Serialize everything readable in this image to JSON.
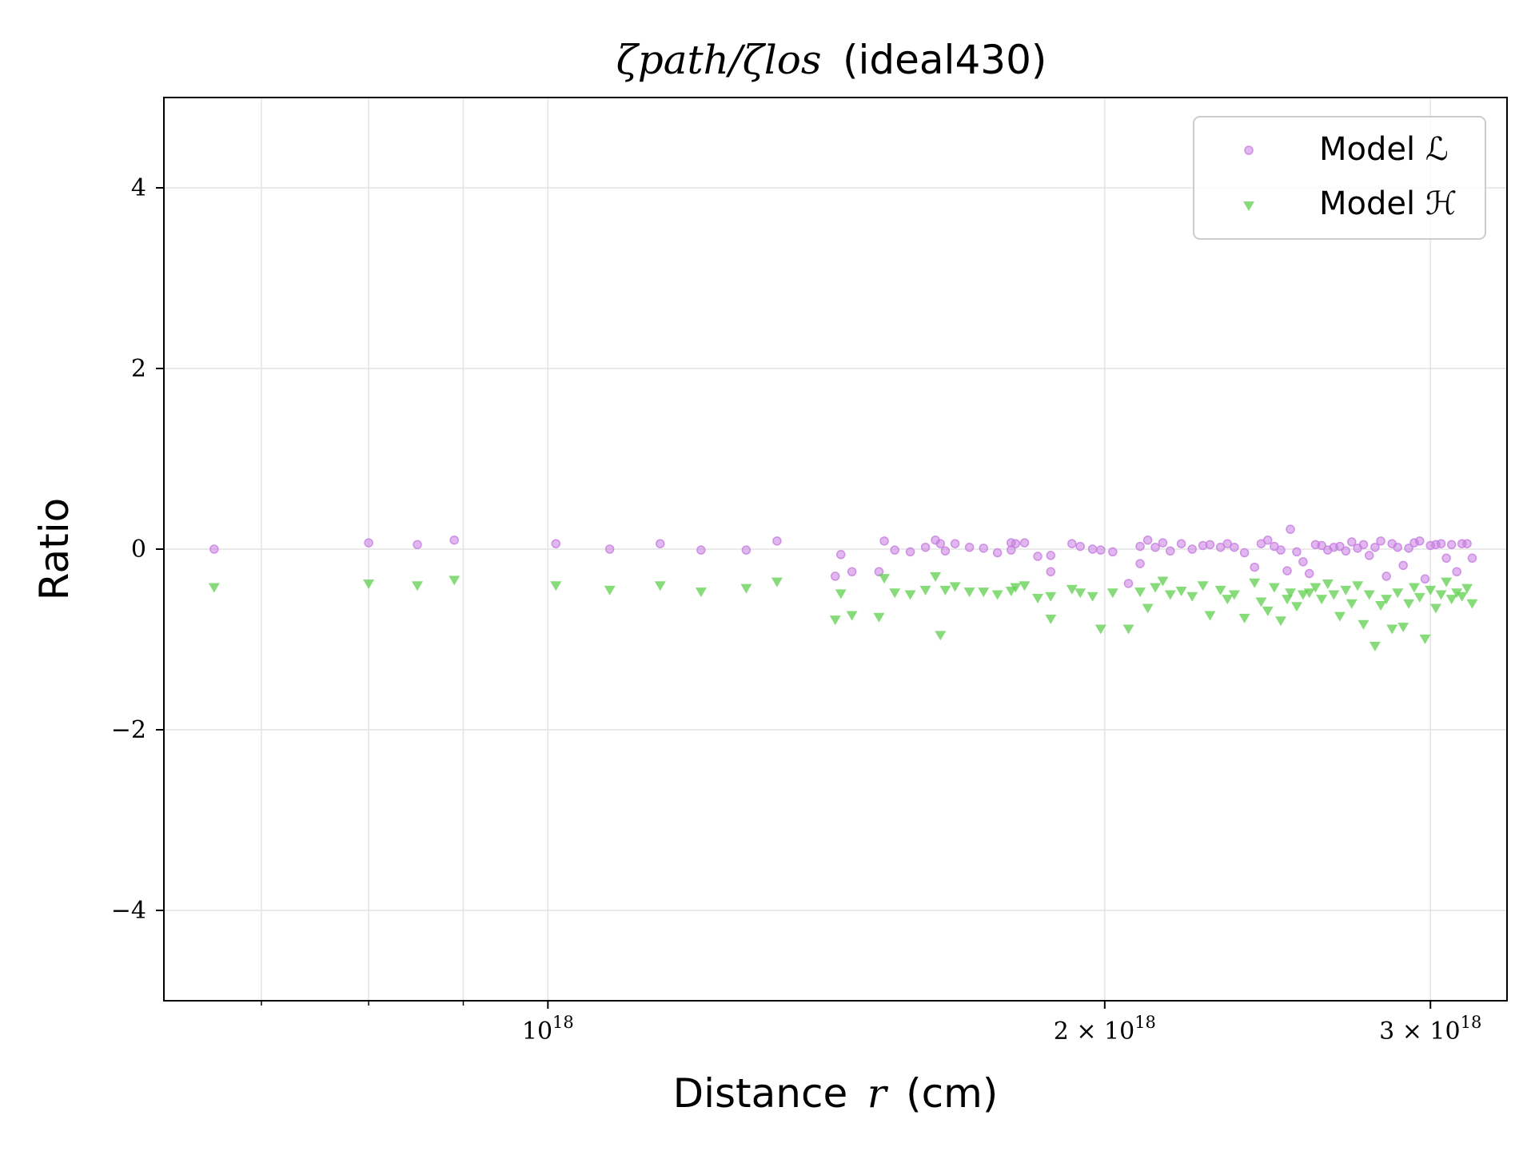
{
  "chart_data": {
    "type": "scatter",
    "title_math": "ζpath/ζlos",
    "title_text": "(ideal430)",
    "xlabel_text": "Distance",
    "xlabel_var": "r",
    "xlabel_unit": "(cm)",
    "ylabel": "Ratio",
    "x_scale": "log",
    "x_range": [
      6.2e+17,
      3.3e+18
    ],
    "ylim": [
      -5,
      5
    ],
    "grid": true,
    "legend_position": "top-right",
    "x_major_ticks": [
      {
        "value": 1e+18,
        "label_coef": "",
        "label_base": "10",
        "label_exp": "18"
      },
      {
        "value": 2e+18,
        "label_coef": "2 × ",
        "label_base": "10",
        "label_exp": "18"
      },
      {
        "value": 3e+18,
        "label_coef": "3 × ",
        "label_base": "10",
        "label_exp": "18"
      }
    ],
    "x_minor_ticks": [
      7e+17,
      8e+17,
      9e+17
    ],
    "y_ticks": [
      {
        "value": 4,
        "label": "4"
      },
      {
        "value": 2,
        "label": "2"
      },
      {
        "value": 0,
        "label": "0"
      },
      {
        "value": -2,
        "label": "−2"
      },
      {
        "value": -4,
        "label": "−4"
      }
    ],
    "series": [
      {
        "name": "Model ℒ",
        "color": "#c77ce0",
        "marker": "circle",
        "points": [
          [
            6.6e+17,
            0.0
          ],
          [
            8e+17,
            0.07
          ],
          [
            8.5e+17,
            0.05
          ],
          [
            8.9e+17,
            0.1
          ],
          [
            1.01e+18,
            0.06
          ],
          [
            1.08e+18,
            0.0
          ],
          [
            1.15e+18,
            0.06
          ],
          [
            1.21e+18,
            -0.01
          ],
          [
            1.28e+18,
            -0.01
          ],
          [
            1.33e+18,
            0.09
          ],
          [
            1.43e+18,
            -0.3
          ],
          [
            1.44e+18,
            -0.06
          ],
          [
            1.46e+18,
            -0.25
          ],
          [
            1.51e+18,
            -0.25
          ],
          [
            1.52e+18,
            0.09
          ],
          [
            1.54e+18,
            -0.01
          ],
          [
            1.57e+18,
            -0.03
          ],
          [
            1.6e+18,
            0.02
          ],
          [
            1.62e+18,
            0.1
          ],
          [
            1.63e+18,
            0.06
          ],
          [
            1.64e+18,
            -0.02
          ],
          [
            1.66e+18,
            0.06
          ],
          [
            1.69e+18,
            0.02
          ],
          [
            1.72e+18,
            0.01
          ],
          [
            1.75e+18,
            -0.04
          ],
          [
            1.78e+18,
            0.07
          ],
          [
            1.79e+18,
            0.06
          ],
          [
            1.78e+18,
            -0.01
          ],
          [
            1.81e+18,
            0.07
          ],
          [
            1.84e+18,
            -0.08
          ],
          [
            1.87e+18,
            -0.07
          ],
          [
            1.87e+18,
            -0.25
          ],
          [
            1.92e+18,
            0.06
          ],
          [
            1.94e+18,
            0.03
          ],
          [
            1.97e+18,
            0.0
          ],
          [
            1.99e+18,
            -0.01
          ],
          [
            2.02e+18,
            -0.03
          ],
          [
            2.06e+18,
            -0.38
          ],
          [
            2.09e+18,
            -0.16
          ],
          [
            2.09e+18,
            0.03
          ],
          [
            2.11e+18,
            0.1
          ],
          [
            2.13e+18,
            0.02
          ],
          [
            2.15e+18,
            0.07
          ],
          [
            2.17e+18,
            -0.02
          ],
          [
            2.2e+18,
            0.06
          ],
          [
            2.23e+18,
            0.0
          ],
          [
            2.26e+18,
            0.04
          ],
          [
            2.28e+18,
            0.05
          ],
          [
            2.31e+18,
            0.02
          ],
          [
            2.33e+18,
            0.06
          ],
          [
            2.35e+18,
            0.02
          ],
          [
            2.38e+18,
            -0.04
          ],
          [
            2.41e+18,
            -0.2
          ],
          [
            2.43e+18,
            0.06
          ],
          [
            2.45e+18,
            0.1
          ],
          [
            2.47e+18,
            0.03
          ],
          [
            2.49e+18,
            -0.01
          ],
          [
            2.51e+18,
            -0.24
          ],
          [
            2.52e+18,
            0.22
          ],
          [
            2.54e+18,
            -0.03
          ],
          [
            2.56e+18,
            -0.14
          ],
          [
            2.58e+18,
            -0.27
          ],
          [
            2.6e+18,
            0.05
          ],
          [
            2.62e+18,
            0.04
          ],
          [
            2.64e+18,
            -0.01
          ],
          [
            2.66e+18,
            0.02
          ],
          [
            2.68e+18,
            0.03
          ],
          [
            2.7e+18,
            -0.02
          ],
          [
            2.72e+18,
            0.08
          ],
          [
            2.74e+18,
            0.01
          ],
          [
            2.76e+18,
            0.05
          ],
          [
            2.78e+18,
            -0.07
          ],
          [
            2.8e+18,
            0.02
          ],
          [
            2.82e+18,
            0.09
          ],
          [
            2.84e+18,
            -0.3
          ],
          [
            2.86e+18,
            0.06
          ],
          [
            2.88e+18,
            0.02
          ],
          [
            2.9e+18,
            -0.18
          ],
          [
            2.92e+18,
            0.01
          ],
          [
            2.94e+18,
            0.07
          ],
          [
            2.96e+18,
            0.09
          ],
          [
            2.98e+18,
            -0.33
          ],
          [
            3e+18,
            0.04
          ],
          [
            3.02e+18,
            0.05
          ],
          [
            3.04e+18,
            0.06
          ],
          [
            3.06e+18,
            -0.1
          ],
          [
            3.08e+18,
            0.05
          ],
          [
            3.1e+18,
            -0.25
          ],
          [
            3.12e+18,
            0.06
          ],
          [
            3.14e+18,
            0.06
          ],
          [
            3.16e+18,
            -0.1
          ]
        ]
      },
      {
        "name": "Model ℋ",
        "color": "#5fcf4e",
        "marker": "triangle-down",
        "points": [
          [
            6.6e+17,
            -0.42
          ],
          [
            8e+17,
            -0.38
          ],
          [
            8.5e+17,
            -0.4
          ],
          [
            8.9e+17,
            -0.34
          ],
          [
            1.01e+18,
            -0.4
          ],
          [
            1.08e+18,
            -0.45
          ],
          [
            1.15e+18,
            -0.4
          ],
          [
            1.21e+18,
            -0.47
          ],
          [
            1.28e+18,
            -0.43
          ],
          [
            1.33e+18,
            -0.36
          ],
          [
            1.43e+18,
            -0.78
          ],
          [
            1.44e+18,
            -0.49
          ],
          [
            1.46e+18,
            -0.73
          ],
          [
            1.51e+18,
            -0.75
          ],
          [
            1.52e+18,
            -0.32
          ],
          [
            1.54e+18,
            -0.48
          ],
          [
            1.57e+18,
            -0.5
          ],
          [
            1.6e+18,
            -0.45
          ],
          [
            1.62e+18,
            -0.3
          ],
          [
            1.63e+18,
            -0.95
          ],
          [
            1.64e+18,
            -0.45
          ],
          [
            1.66e+18,
            -0.41
          ],
          [
            1.69e+18,
            -0.47
          ],
          [
            1.72e+18,
            -0.47
          ],
          [
            1.75e+18,
            -0.5
          ],
          [
            1.78e+18,
            -0.46
          ],
          [
            1.79e+18,
            -0.42
          ],
          [
            1.81e+18,
            -0.4
          ],
          [
            1.84e+18,
            -0.54
          ],
          [
            1.87e+18,
            -0.77
          ],
          [
            1.87e+18,
            -0.52
          ],
          [
            1.92e+18,
            -0.44
          ],
          [
            1.94e+18,
            -0.48
          ],
          [
            1.97e+18,
            -0.52
          ],
          [
            1.99e+18,
            -0.88
          ],
          [
            2.02e+18,
            -0.48
          ],
          [
            2.06e+18,
            -0.88
          ],
          [
            2.09e+18,
            -0.47
          ],
          [
            2.11e+18,
            -0.65
          ],
          [
            2.13e+18,
            -0.42
          ],
          [
            2.15e+18,
            -0.35
          ],
          [
            2.17e+18,
            -0.5
          ],
          [
            2.2e+18,
            -0.46
          ],
          [
            2.23e+18,
            -0.52
          ],
          [
            2.26e+18,
            -0.4
          ],
          [
            2.28e+18,
            -0.73
          ],
          [
            2.31e+18,
            -0.45
          ],
          [
            2.33e+18,
            -0.55
          ],
          [
            2.35e+18,
            -0.5
          ],
          [
            2.38e+18,
            -0.76
          ],
          [
            2.41e+18,
            -0.37
          ],
          [
            2.43e+18,
            -0.58
          ],
          [
            2.45e+18,
            -0.68
          ],
          [
            2.47e+18,
            -0.42
          ],
          [
            2.49e+18,
            -0.79
          ],
          [
            2.51e+18,
            -0.55
          ],
          [
            2.52e+18,
            -0.48
          ],
          [
            2.54e+18,
            -0.63
          ],
          [
            2.56e+18,
            -0.5
          ],
          [
            2.58e+18,
            -0.48
          ],
          [
            2.6e+18,
            -0.42
          ],
          [
            2.62e+18,
            -0.55
          ],
          [
            2.64e+18,
            -0.38
          ],
          [
            2.66e+18,
            -0.5
          ],
          [
            2.68e+18,
            -0.74
          ],
          [
            2.7e+18,
            -0.45
          ],
          [
            2.72e+18,
            -0.6
          ],
          [
            2.74e+18,
            -0.4
          ],
          [
            2.76e+18,
            -0.83
          ],
          [
            2.78e+18,
            -0.5
          ],
          [
            2.8e+18,
            -1.07
          ],
          [
            2.82e+18,
            -0.62
          ],
          [
            2.84e+18,
            -0.55
          ],
          [
            2.86e+18,
            -0.88
          ],
          [
            2.88e+18,
            -0.48
          ],
          [
            2.9e+18,
            -0.86
          ],
          [
            2.92e+18,
            -0.6
          ],
          [
            2.94e+18,
            -0.42
          ],
          [
            2.96e+18,
            -0.53
          ],
          [
            2.98e+18,
            -0.99
          ],
          [
            3e+18,
            -0.45
          ],
          [
            3.02e+18,
            -0.65
          ],
          [
            3.04e+18,
            -0.5
          ],
          [
            3.06e+18,
            -0.36
          ],
          [
            3.08e+18,
            -0.55
          ],
          [
            3.1e+18,
            -0.48
          ],
          [
            3.12e+18,
            -0.52
          ],
          [
            3.14e+18,
            -0.43
          ],
          [
            3.16e+18,
            -0.6
          ]
        ]
      }
    ]
  }
}
